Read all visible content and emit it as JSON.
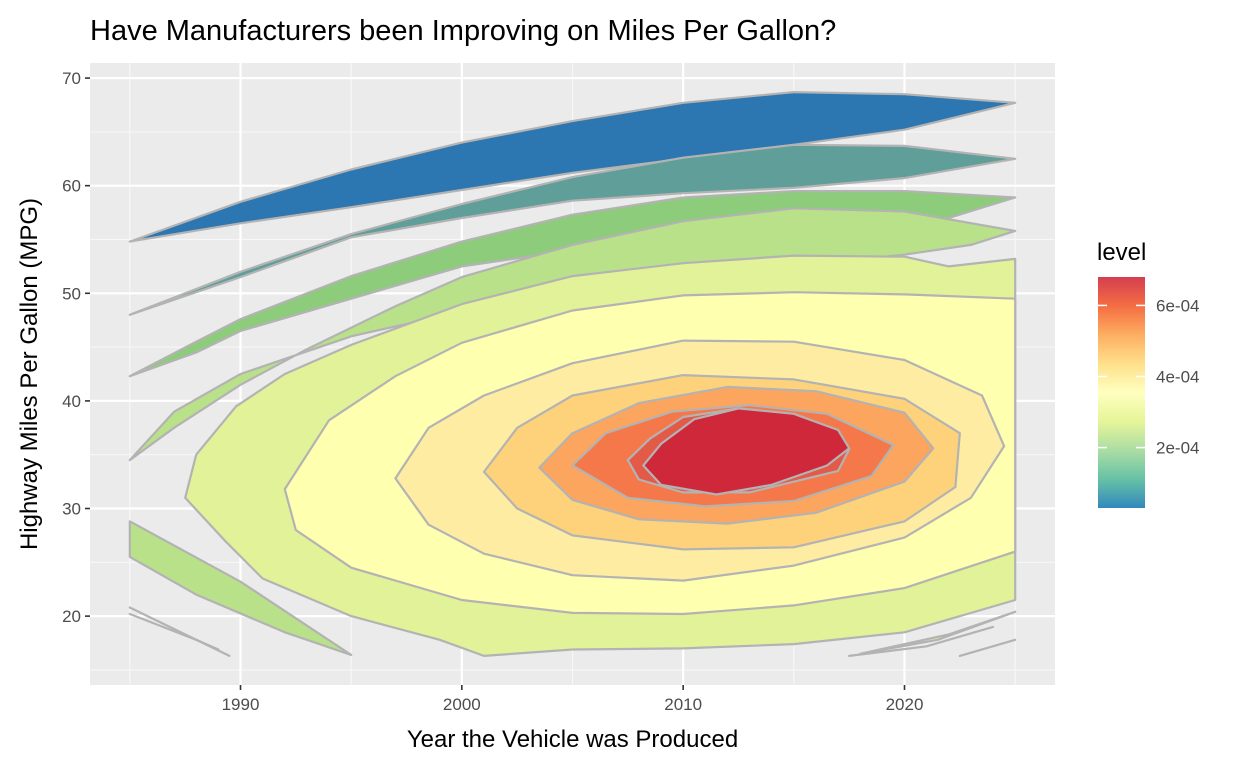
{
  "chart_data": {
    "type": "filled_contour",
    "title": "Have Manufacturers been Improving on Miles Per Gallon?",
    "xlabel": "Year the Vehicle was Produced",
    "ylabel": "Highway Miles Per Gallon (MPG)",
    "xlim": [
      1983.2,
      2026.8
    ],
    "ylim": [
      13.6,
      71.4
    ],
    "x_ticks": [
      1990,
      2000,
      2010,
      2020
    ],
    "x_tick_labels": [
      "1990",
      "2000",
      "2010",
      "2020"
    ],
    "y_ticks": [
      20,
      30,
      40,
      50,
      60,
      70
    ],
    "y_tick_labels": [
      "20",
      "30",
      "40",
      "50",
      "60",
      "70"
    ],
    "grid": true,
    "legend": {
      "title": "level",
      "position": "right",
      "range": [
        3e-05,
        0.00068
      ],
      "ticks": [
        0.0002,
        0.0004,
        0.0006
      ],
      "tick_labels": [
        "2e-04",
        "4e-04",
        "6e-04"
      ],
      "palette": "Spectral"
    },
    "density_peak": {
      "year": 2011.5,
      "mpg": 35.2
    },
    "bands": [
      {
        "level": 3e-05,
        "color": "#2c76b2",
        "polygon": [
          [
            1985,
            54.8
          ],
          [
            1990,
            58.5
          ],
          [
            1995,
            61.5
          ],
          [
            2000,
            64.0
          ],
          [
            2005,
            66.0
          ],
          [
            2010,
            67.7
          ],
          [
            2015,
            68.7
          ],
          [
            2020,
            68.5
          ],
          [
            2025,
            67.7
          ],
          [
            2020,
            65.2
          ],
          [
            2015,
            63.8
          ],
          [
            2010,
            62.5
          ],
          [
            2005,
            61.2
          ],
          [
            2000,
            59.6
          ],
          [
            1995,
            58.0
          ],
          [
            1990,
            56.5
          ],
          [
            1985,
            54.8
          ]
        ]
      },
      {
        "level": 8e-05,
        "color": "#5f9e99",
        "polygon": [
          [
            1985,
            48.0
          ],
          [
            1990,
            52.0
          ],
          [
            1995,
            55.5
          ],
          [
            2000,
            58.3
          ],
          [
            2005,
            60.8
          ],
          [
            2010,
            62.6
          ],
          [
            2015,
            63.8
          ],
          [
            2020,
            63.7
          ],
          [
            2025,
            62.5
          ],
          [
            2020,
            60.7
          ],
          [
            2015,
            59.8
          ],
          [
            2010,
            59.3
          ],
          [
            2005,
            58.6
          ],
          [
            2000,
            57.0
          ],
          [
            1995,
            55.2
          ],
          [
            1990,
            51.5
          ],
          [
            1985,
            48.0
          ]
        ]
      },
      {
        "level": 0.00013,
        "color": "#8ccc7a",
        "polygon": [
          [
            1985,
            42.3
          ],
          [
            1988,
            45.5
          ],
          [
            1990,
            47.6
          ],
          [
            1995,
            51.6
          ],
          [
            2000,
            54.8
          ],
          [
            2005,
            57.3
          ],
          [
            2010,
            58.9
          ],
          [
            2015,
            59.5
          ],
          [
            2020,
            59.5
          ],
          [
            2025,
            58.9
          ],
          [
            2022,
            57.0
          ],
          [
            2018,
            56.0
          ],
          [
            2012,
            55.0
          ],
          [
            2005,
            54.0
          ],
          [
            2000,
            52.5
          ],
          [
            1995,
            49.5
          ],
          [
            1990,
            46.5
          ],
          [
            1988,
            44.5
          ],
          [
            1985,
            42.3
          ]
        ]
      },
      {
        "level": 0.00018,
        "color": "#b9e189",
        "polygon": [
          [
            1985,
            34.5
          ],
          [
            1987,
            37.5
          ],
          [
            1990,
            41.5
          ],
          [
            1993,
            44.8
          ],
          [
            1997,
            48.8
          ],
          [
            2000,
            51.5
          ],
          [
            2005,
            54.5
          ],
          [
            2010,
            56.7
          ],
          [
            2015,
            57.9
          ],
          [
            2020,
            57.6
          ],
          [
            2025,
            55.8
          ],
          [
            2023,
            54.5
          ],
          [
            2020,
            53.6
          ],
          [
            2015,
            52.5
          ],
          [
            2010,
            51.3
          ],
          [
            2005,
            50.0
          ],
          [
            2000,
            48.3
          ],
          [
            1995,
            46.0
          ],
          [
            1990,
            42.5
          ],
          [
            1987,
            39.0
          ],
          [
            1985,
            34.5
          ]
        ]
      },
      {
        "level": 0.00018,
        "color": "#b9e189",
        "polygon": [
          [
            1985,
            28.8
          ],
          [
            1990,
            23.2
          ],
          [
            1995,
            16.4
          ],
          [
            1992,
            18.5
          ],
          [
            1988,
            22.0
          ],
          [
            1985,
            25.5
          ],
          [
            1985,
            28.8
          ]
        ]
      },
      {
        "level": 0.00023,
        "color": "#e2f298",
        "polygon": [
          [
            1989.8,
            39.5
          ],
          [
            1992,
            42.5
          ],
          [
            1995,
            45.2
          ],
          [
            2000,
            49.0
          ],
          [
            2005,
            51.6
          ],
          [
            2010,
            52.8
          ],
          [
            2015,
            53.5
          ],
          [
            2020,
            53.4
          ],
          [
            2022,
            52.5
          ],
          [
            2025,
            53.2
          ],
          [
            2025,
            21.5
          ],
          [
            2020,
            18.5
          ],
          [
            2015,
            17.4
          ],
          [
            2010,
            17.0
          ],
          [
            2005,
            16.9
          ],
          [
            2001,
            16.3
          ],
          [
            1999,
            17.8
          ],
          [
            1995,
            20.0
          ],
          [
            1991,
            23.5
          ],
          [
            1989.3,
            27.0
          ],
          [
            1987.5,
            31.0
          ],
          [
            1988,
            35.0
          ],
          [
            1989.8,
            39.5
          ]
        ]
      },
      {
        "level": 0.00023,
        "color": "#e2f298",
        "polygon": [
          [
            2018,
            16.5
          ],
          [
            2022,
            18.3
          ],
          [
            2025,
            20.4
          ],
          [
            2021.5,
            17.8
          ],
          [
            2018,
            16.5
          ]
        ]
      },
      {
        "level": 0.00028,
        "color": "#ffffb0",
        "polygon": [
          [
            1992,
            31.8
          ],
          [
            1994,
            38.2
          ],
          [
            1997,
            42.3
          ],
          [
            2000,
            45.4
          ],
          [
            2005,
            48.4
          ],
          [
            2010,
            49.8
          ],
          [
            2015,
            50.1
          ],
          [
            2020,
            49.9
          ],
          [
            2025,
            49.5
          ],
          [
            2025,
            26.0
          ],
          [
            2020,
            22.6
          ],
          [
            2015,
            21.0
          ],
          [
            2010,
            20.2
          ],
          [
            2005,
            20.3
          ],
          [
            2000,
            21.5
          ],
          [
            1995,
            24.5
          ],
          [
            1992.5,
            28.0
          ],
          [
            1992,
            31.8
          ]
        ]
      },
      {
        "level": 0.00033,
        "color": "#ffeca3",
        "polygon": [
          [
            1997,
            32.8
          ],
          [
            1998.5,
            37.5
          ],
          [
            2001,
            40.5
          ],
          [
            2005,
            43.5
          ],
          [
            2010,
            45.6
          ],
          [
            2015,
            45.5
          ],
          [
            2020,
            43.8
          ],
          [
            2023.5,
            40.5
          ],
          [
            2024.5,
            35.8
          ],
          [
            2023,
            31.0
          ],
          [
            2020,
            27.3
          ],
          [
            2015,
            24.7
          ],
          [
            2010,
            23.3
          ],
          [
            2005,
            23.8
          ],
          [
            2001,
            25.8
          ],
          [
            1998.5,
            28.5
          ],
          [
            1997,
            32.8
          ]
        ]
      },
      {
        "level": 0.00038,
        "color": "#fed27b",
        "polygon": [
          [
            2001,
            33.4
          ],
          [
            2002.5,
            37.5
          ],
          [
            2005,
            40.5
          ],
          [
            2010,
            42.4
          ],
          [
            2015,
            42.0
          ],
          [
            2020,
            40.2
          ],
          [
            2022.5,
            37.0
          ],
          [
            2022.3,
            32.0
          ],
          [
            2020,
            28.8
          ],
          [
            2015,
            26.4
          ],
          [
            2010,
            26.2
          ],
          [
            2005,
            27.5
          ],
          [
            2002.5,
            30.0
          ],
          [
            2001,
            33.4
          ]
        ]
      },
      {
        "level": 0.00043,
        "color": "#fca55e",
        "polygon": [
          [
            2003.5,
            33.8
          ],
          [
            2005,
            37.0
          ],
          [
            2008,
            39.8
          ],
          [
            2012,
            41.3
          ],
          [
            2016,
            40.9
          ],
          [
            2020,
            38.9
          ],
          [
            2021.3,
            35.6
          ],
          [
            2020,
            32.5
          ],
          [
            2016,
            29.6
          ],
          [
            2012,
            28.6
          ],
          [
            2008,
            29.0
          ],
          [
            2005,
            30.8
          ],
          [
            2003.5,
            33.8
          ]
        ]
      },
      {
        "level": 0.00053,
        "color": "#f5784a",
        "polygon": [
          [
            2005,
            34.0
          ],
          [
            2006.5,
            37.0
          ],
          [
            2009.5,
            39.0
          ],
          [
            2013,
            39.6
          ],
          [
            2016.5,
            38.8
          ],
          [
            2019.5,
            35.9
          ],
          [
            2018.5,
            33.0
          ],
          [
            2015,
            30.7
          ],
          [
            2011,
            30.2
          ],
          [
            2007.5,
            31.0
          ],
          [
            2005,
            34.0
          ]
        ]
      },
      {
        "level": 0.0006,
        "color": "#e35a48",
        "polygon": [
          [
            2007.5,
            34.5
          ],
          [
            2008.5,
            36.5
          ],
          [
            2010,
            38.5
          ],
          [
            2012.5,
            39.3
          ],
          [
            2015.5,
            38.2
          ],
          [
            2017.5,
            35.5
          ],
          [
            2017,
            33.5
          ],
          [
            2013,
            31.5
          ],
          [
            2010,
            31.5
          ],
          [
            2008,
            32.7
          ],
          [
            2007.5,
            34.5
          ]
        ]
      },
      {
        "level": 0.00066,
        "color": "#d0283b",
        "polygon": [
          [
            2008.2,
            34.0
          ],
          [
            2009,
            36.0
          ],
          [
            2010.5,
            38.3
          ],
          [
            2012.5,
            39.3
          ],
          [
            2015,
            38.8
          ],
          [
            2017,
            37.3
          ],
          [
            2017.5,
            35.6
          ],
          [
            2016.5,
            34.0
          ],
          [
            2014,
            32.2
          ],
          [
            2011.5,
            31.3
          ],
          [
            2009,
            32.2
          ],
          [
            2008.2,
            34.0
          ]
        ]
      }
    ],
    "open_lines": [
      {
        "color": "#b3b3b3",
        "points": [
          [
            1985,
            20.8
          ],
          [
            1987,
            18.8
          ],
          [
            1989.5,
            16.3
          ]
        ]
      },
      {
        "color": "#b3b3b3",
        "points": [
          [
            1985,
            20.2
          ],
          [
            1988,
            17.8
          ],
          [
            1989,
            16.9
          ]
        ]
      },
      {
        "color": "#b3b3b3",
        "points": [
          [
            2017.5,
            16.3
          ],
          [
            2021,
            17.2
          ],
          [
            2024,
            19.0
          ]
        ]
      },
      {
        "color": "#b3b3b3",
        "points": [
          [
            2022.5,
            16.3
          ],
          [
            2025,
            17.8
          ]
        ]
      }
    ]
  }
}
